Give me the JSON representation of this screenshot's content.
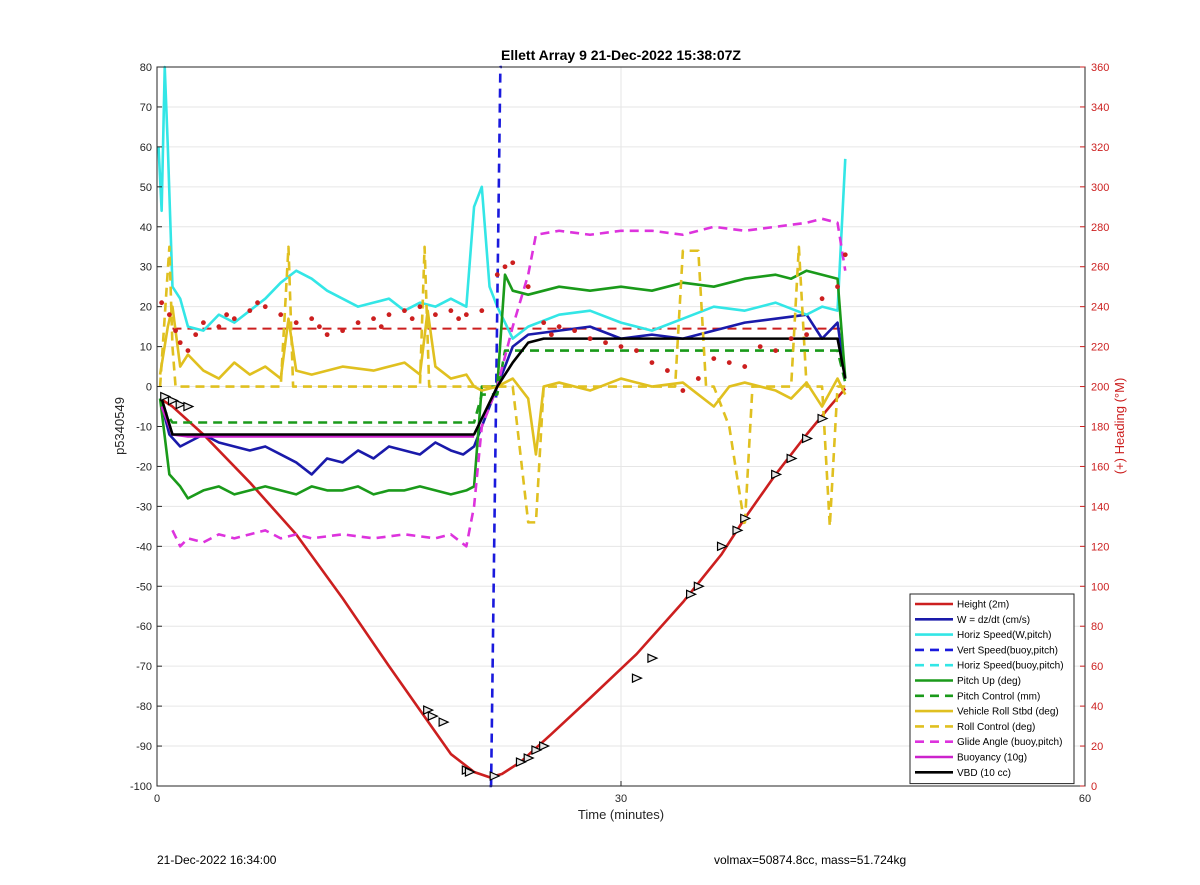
{
  "chart_data": {
    "type": "line",
    "title": "Ellett Array 9 21-Dec-2022 15:38:07Z",
    "xlabel": "Time (minutes)",
    "ylabel": "p5340549",
    "ylabel_right": "(+) Heading (°M)",
    "xlim": [
      0,
      60
    ],
    "ylim": [
      -100,
      80
    ],
    "ylim_right": [
      0,
      360
    ],
    "xticks": [
      0,
      30,
      60
    ],
    "yticks": [
      -100,
      -90,
      -80,
      -70,
      -60,
      -50,
      -40,
      -30,
      -20,
      -10,
      0,
      10,
      20,
      30,
      40,
      50,
      60,
      70,
      80
    ],
    "yticks_right": [
      0,
      20,
      40,
      60,
      80,
      100,
      120,
      140,
      160,
      180,
      200,
      220,
      240,
      260,
      280,
      300,
      320,
      340,
      360
    ],
    "grid": true,
    "legend_position": "bottom-right",
    "series": [
      {
        "name": "Height (2m)",
        "color": "#cc1f1f",
        "style": "solid",
        "x": [
          0.2,
          1.0,
          3.0,
          6.0,
          9.0,
          12.0,
          15.0,
          17.0,
          19.0,
          20.5,
          21.5,
          22.3,
          23.5,
          25.5,
          28.0,
          31.0,
          34.0,
          36.5,
          38.0,
          40.0,
          42.0,
          43.5,
          44.5
        ],
        "y": [
          -3.0,
          -5.0,
          -12.0,
          -24.0,
          -37.0,
          -53.0,
          -70.0,
          -81.0,
          -92.0,
          -96.5,
          -97.8,
          -97.0,
          -94.0,
          -87.0,
          -78.0,
          -67.0,
          -54.0,
          -42.0,
          -33.0,
          -22.0,
          -12.0,
          -5.0,
          -0.5
        ]
      },
      {
        "name": "W = dz/dt (cm/s)",
        "color": "#1a1aaa",
        "style": "solid",
        "x": [
          0.2,
          0.8,
          1.5,
          3.0,
          4.0,
          5.0,
          6.0,
          7.0,
          8.0,
          9.0,
          10.0,
          11.0,
          12.0,
          13.0,
          14.0,
          15.0,
          16.0,
          17.0,
          18.0,
          19.0,
          19.8,
          20.5,
          22.0,
          23.0,
          24.0,
          26.0,
          28.0,
          30.0,
          32.0,
          34.0,
          36.0,
          38.0,
          40.0,
          42.0,
          43.0,
          44.0,
          44.5
        ],
        "y": [
          -3,
          -12,
          -15,
          -12,
          -14,
          -15,
          -16,
          -15,
          -17,
          -19,
          -22,
          -18,
          -19,
          -16,
          -18,
          -15,
          -16,
          -17,
          -14,
          -16,
          -17,
          -15,
          0,
          10,
          13,
          14,
          15,
          12,
          13,
          12,
          14,
          16,
          17,
          18,
          12,
          16,
          2
        ]
      },
      {
        "name": "Horiz Speed(W,pitch)",
        "color": "#33e6e6",
        "style": "solid",
        "x": [
          0.1,
          0.3,
          0.5,
          0.7,
          1.0,
          1.5,
          2.0,
          3.0,
          4.0,
          5.0,
          6.0,
          7.0,
          8.0,
          9.0,
          10.0,
          11.0,
          12.0,
          13.0,
          14.0,
          15.0,
          16.0,
          17.0,
          18.0,
          19.0,
          20.0,
          20.5,
          21.0,
          21.5,
          22.0,
          23.0,
          24.0,
          26.0,
          28.0,
          30.0,
          32.0,
          34.0,
          36.0,
          38.0,
          40.0,
          42.0,
          43.0,
          44.0,
          44.5
        ],
        "y": [
          60,
          44,
          80,
          60,
          25,
          22,
          15,
          14,
          18,
          16,
          19,
          22,
          26,
          29,
          27,
          24,
          22,
          20,
          21,
          22,
          19,
          21,
          20,
          22,
          20,
          45,
          50,
          25,
          20,
          12,
          15,
          18,
          19,
          16,
          14,
          17,
          20,
          19,
          21,
          18,
          20,
          19,
          57
        ]
      },
      {
        "name": "Vert Speed(buoy,pitch)",
        "color": "#1a1add",
        "style": "dashed",
        "x": [
          21.5,
          21.6,
          22.2,
          22.3
        ],
        "y": [
          -100,
          -100,
          80,
          80
        ]
      },
      {
        "name": "Horiz Speed(buoy,pitch)",
        "color": "#33e6e6",
        "style": "dashed",
        "x": [],
        "y": []
      },
      {
        "name": "Pitch Up (deg)",
        "color": "#1a9a1a",
        "style": "solid",
        "x": [
          0.2,
          0.8,
          1.5,
          2.0,
          3.0,
          4.0,
          5.0,
          6.0,
          7.0,
          8.0,
          9.0,
          10.0,
          11.0,
          12.0,
          13.0,
          14.0,
          15.0,
          16.0,
          17.0,
          18.0,
          19.0,
          20.0,
          20.5,
          21.0,
          22.0,
          22.5,
          23.0,
          24.0,
          26.0,
          28.0,
          30.0,
          32.0,
          34.0,
          36.0,
          38.0,
          40.0,
          41.0,
          42.0,
          43.0,
          44.0,
          44.5
        ],
        "y": [
          -3,
          -22,
          -25,
          -28,
          -26,
          -25,
          -27,
          -26,
          -25,
          -26,
          -27,
          -25,
          -26,
          -26,
          -25,
          -27,
          -26,
          -26,
          -25,
          -26,
          -27,
          -26,
          -25,
          0,
          0,
          28,
          24,
          23,
          25,
          24,
          25,
          24,
          26,
          25,
          27,
          28,
          27,
          29,
          28,
          27,
          2
        ]
      },
      {
        "name": "Pitch Control (mm)",
        "color": "#1a9a1a",
        "style": "dashed",
        "x": [
          0.3,
          1.0,
          20.0,
          20.5,
          21.0,
          22.0,
          22.5,
          24.0,
          32.0,
          40.0,
          44.0,
          44.5
        ],
        "y": [
          -5,
          -9,
          -9,
          -9,
          -2,
          -2,
          9,
          9,
          9,
          9,
          9,
          1
        ]
      },
      {
        "name": "Vehicle Roll Stbd (deg)",
        "color": "#e0c020",
        "style": "solid",
        "x": [
          0.2,
          0.7,
          1.0,
          1.5,
          2.0,
          3.0,
          4.0,
          5.0,
          6.0,
          7.0,
          8.0,
          8.5,
          9.0,
          10.0,
          12.0,
          14.0,
          16.0,
          17.0,
          17.5,
          18.0,
          19.0,
          20.0,
          20.5,
          21.0,
          22.0,
          22.5,
          23.0,
          24.0,
          24.5,
          25.0,
          26.0,
          28.0,
          30.0,
          32.0,
          34.0,
          35.0,
          36.0,
          37.0,
          38.0,
          40.0,
          41.0,
          42.0,
          43.0,
          44.0,
          44.5
        ],
        "y": [
          3,
          15,
          20,
          5,
          8,
          4,
          2,
          6,
          3,
          5,
          2,
          17,
          4,
          3,
          5,
          4,
          6,
          3,
          19,
          5,
          2,
          3,
          0,
          -1,
          0,
          1,
          2,
          -3,
          -17,
          0,
          1,
          -1,
          2,
          0,
          1,
          -2,
          -5,
          0,
          1,
          -1,
          -3,
          1,
          -5,
          2,
          -2
        ]
      },
      {
        "name": "Roll Control (deg)",
        "color": "#e0c020",
        "style": "dashed",
        "x": [
          0.2,
          0.8,
          1.0,
          1.2,
          1.5,
          3.0,
          8.0,
          8.5,
          8.8,
          9.0,
          12.0,
          17.0,
          17.3,
          17.6,
          18.0,
          21.0,
          22.0,
          23.0,
          24.0,
          24.5,
          25.0,
          26.0,
          30.0,
          33.5,
          34.0,
          35.0,
          35.5,
          36.0,
          37.0,
          38.0,
          38.5,
          39.0,
          41.0,
          41.5,
          42.0,
          43.0,
          43.5,
          44.0,
          44.5
        ],
        "y": [
          0,
          35,
          10,
          0,
          0,
          0,
          0,
          35,
          0,
          0,
          0,
          0,
          35,
          0,
          0,
          0,
          0,
          0,
          -34,
          -34,
          0,
          0,
          0,
          0,
          34,
          34,
          0,
          0,
          -10,
          -35,
          0,
          0,
          0,
          35,
          0,
          0,
          -35,
          0,
          0
        ]
      },
      {
        "name": "Glide Angle (buoy,pitch)",
        "color": "#dd33dd",
        "style": "dashed",
        "x": [
          1.0,
          1.5,
          2.0,
          3.0,
          4.0,
          5.0,
          6.0,
          7.0,
          8.0,
          9.0,
          10.0,
          12.0,
          14.0,
          16.0,
          18.0,
          19.0,
          20.0,
          20.5,
          21.0,
          21.5,
          22.0,
          23.0,
          24.0,
          24.5,
          26.0,
          28.0,
          30.0,
          32.0,
          34.0,
          36.0,
          38.0,
          40.0,
          42.0,
          43.0,
          44.0,
          44.5
        ],
        "y": [
          -36,
          -40,
          -38,
          -39,
          -37,
          -38,
          -37,
          -36,
          -38,
          -37,
          -38,
          -37,
          -38,
          -37,
          -38,
          -37,
          -40,
          -30,
          -10,
          -5,
          0,
          15,
          28,
          38,
          39,
          38,
          39,
          39,
          38,
          40,
          39,
          40,
          41,
          42,
          41,
          29
        ]
      },
      {
        "name": "Buoyancy (10g)",
        "color": "#cc22cc",
        "style": "solid",
        "x": [
          0.3,
          1.0,
          2.0,
          20.0,
          20.5
        ],
        "y": [
          -5,
          -12,
          -12.5,
          -12.5,
          -12.5
        ]
      },
      {
        "name": "VBD (10 cc)",
        "color": "#000000",
        "style": "solid",
        "x": [
          0.3,
          1.0,
          2.0,
          20.0,
          20.5,
          21.5,
          22.0,
          23.0,
          24.0,
          25.0,
          30.0,
          35.0,
          40.0,
          44.0,
          44.5
        ],
        "y": [
          -3,
          -12,
          -12,
          -12,
          -12,
          -4,
          0,
          6,
          11,
          12,
          12,
          12,
          12,
          12,
          2
        ]
      }
    ],
    "heading_points": {
      "axis": "right",
      "color": "#cc1f1f",
      "x": [
        0.3,
        0.8,
        1.2,
        1.5,
        2.0,
        2.5,
        3.0,
        4.0,
        4.5,
        5.0,
        6.0,
        6.5,
        7.0,
        8.0,
        9.0,
        10.0,
        10.5,
        11.0,
        12.0,
        13.0,
        14.0,
        14.5,
        15.0,
        16.0,
        16.5,
        17.0,
        18.0,
        19.0,
        19.5,
        20.0,
        21.0,
        22.0,
        22.5,
        23.0,
        24.0,
        25.0,
        25.5,
        26.0,
        27.0,
        28.0,
        29.0,
        30.0,
        31.0,
        32.0,
        33.0,
        34.0,
        35.0,
        36.0,
        37.0,
        38.0,
        39.0,
        40.0,
        41.0,
        42.0,
        43.0,
        44.0,
        44.5
      ],
      "y": [
        242,
        236,
        228,
        222,
        218,
        226,
        232,
        230,
        236,
        234,
        238,
        242,
        240,
        236,
        232,
        234,
        230,
        226,
        228,
        232,
        234,
        230,
        236,
        238,
        234,
        240,
        236,
        238,
        234,
        236,
        238,
        256,
        260,
        262,
        250,
        232,
        226,
        230,
        228,
        224,
        222,
        220,
        218,
        212,
        208,
        198,
        204,
        214,
        212,
        210,
        220,
        218,
        224,
        226,
        244,
        250,
        266
      ]
    },
    "heading_target": {
      "axis": "right",
      "color": "#cc1f1f",
      "style": "dashed",
      "x": [
        1.0,
        20.5,
        22.5,
        44.5
      ],
      "y": [
        229,
        229,
        229,
        229
      ]
    },
    "turn_markers": {
      "x": [
        0.5,
        1.0,
        1.5,
        2.0,
        17.5,
        17.8,
        18.5,
        20.0,
        20.2,
        21.8,
        23.5,
        24.0,
        24.5,
        25.0,
        31.0,
        32.0,
        34.5,
        35.0,
        36.5,
        37.5,
        38.0,
        40.0,
        41.0,
        42.0,
        43.0
      ],
      "y": [
        -2.5,
        -3.5,
        -4.5,
        -5.0,
        -81.0,
        -82.5,
        -84.0,
        -96.0,
        -96.5,
        -97.5,
        -94.0,
        -93.0,
        -91.0,
        -90.0,
        -73.0,
        -68.0,
        -52.0,
        -50.0,
        -40.0,
        -36.0,
        -33.0,
        -22.0,
        -18.0,
        -13.0,
        -8.0
      ]
    }
  },
  "footer": {
    "left": "21-Dec-2022 16:34:00",
    "right": "volmax=50874.8cc, mass=51.724kg"
  }
}
